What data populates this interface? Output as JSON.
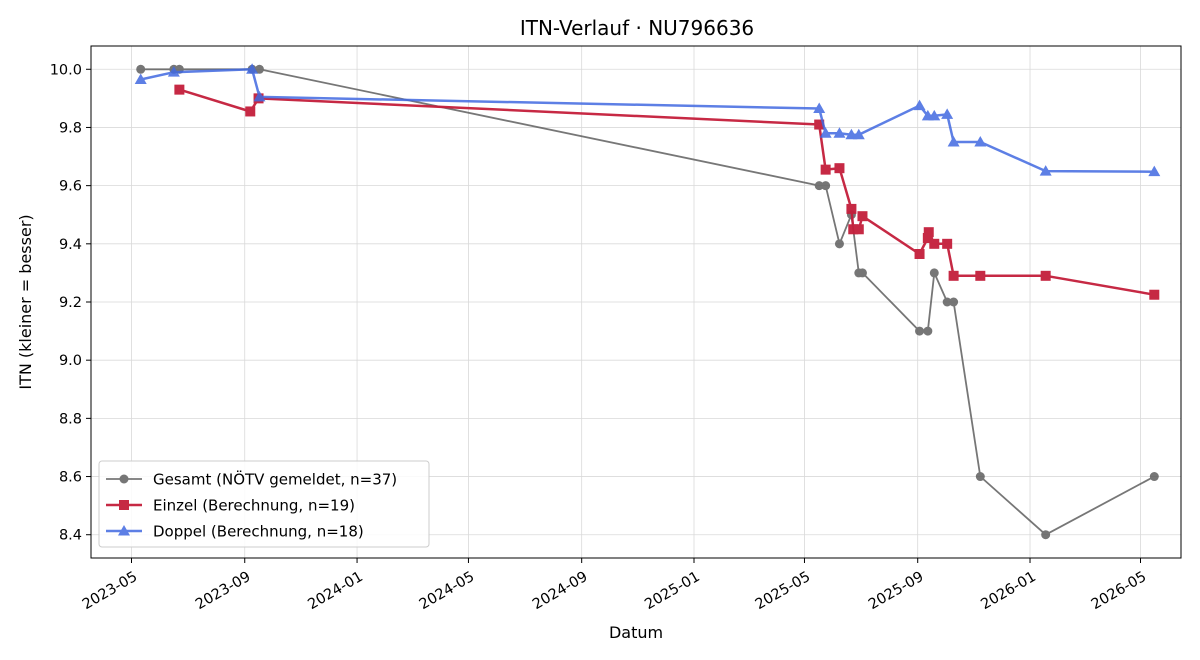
{
  "chart_data": {
    "type": "line",
    "title": "ITN-Verlauf · NU796636",
    "xlabel": "Datum",
    "ylabel": "ITN  (kleiner = besser)",
    "x_ticks": [
      "2023-05",
      "2023-09",
      "2024-01",
      "2024-05",
      "2024-09",
      "2025-01",
      "2025-05",
      "2025-09",
      "2026-01",
      "2026-05"
    ],
    "y_ticks": [
      "8.4",
      "8.6",
      "8.8",
      "9.0",
      "9.2",
      "9.4",
      "9.6",
      "9.8",
      "10.0"
    ],
    "xlim": [
      "2023-03-18",
      "2026-06-14"
    ],
    "ylim": [
      8.32,
      10.08
    ],
    "grid": true,
    "legend_position": "lower-left",
    "series": [
      {
        "name": "Gesamt (NÖTV gemeldet, n=37)",
        "color": "#555555",
        "marker": "circle",
        "points": [
          {
            "x": "2023-05-11",
            "y": 10.0
          },
          {
            "x": "2023-06-16",
            "y": 10.0
          },
          {
            "x": "2023-06-22",
            "y": 10.0
          },
          {
            "x": "2023-09-09",
            "y": 10.0
          },
          {
            "x": "2023-09-17",
            "y": 10.0
          },
          {
            "x": "2025-05-17",
            "y": 9.6
          },
          {
            "x": "2025-05-24",
            "y": 9.6
          },
          {
            "x": "2025-06-08",
            "y": 9.4
          },
          {
            "x": "2025-06-21",
            "y": 9.5
          },
          {
            "x": "2025-06-29",
            "y": 9.3
          },
          {
            "x": "2025-07-03",
            "y": 9.3
          },
          {
            "x": "2025-09-03",
            "y": 9.1
          },
          {
            "x": "2025-09-12",
            "y": 9.1
          },
          {
            "x": "2025-09-19",
            "y": 9.3
          },
          {
            "x": "2025-10-03",
            "y": 9.2
          },
          {
            "x": "2025-10-10",
            "y": 9.2
          },
          {
            "x": "2025-11-08",
            "y": 8.6
          },
          {
            "x": "2026-01-18",
            "y": 8.4
          },
          {
            "x": "2026-05-16",
            "y": 8.6
          }
        ]
      },
      {
        "name": "Einzel (Berechnung, n=19)",
        "color": "#c41e3a",
        "marker": "square",
        "points": [
          {
            "x": "2023-06-22",
            "y": 9.93
          },
          {
            "x": "2023-09-07",
            "y": 9.855
          },
          {
            "x": "2023-09-16",
            "y": 9.9
          },
          {
            "x": "2025-05-17",
            "y": 9.81
          },
          {
            "x": "2025-05-24",
            "y": 9.655
          },
          {
            "x": "2025-06-08",
            "y": 9.66
          },
          {
            "x": "2025-06-21",
            "y": 9.52
          },
          {
            "x": "2025-06-23",
            "y": 9.45
          },
          {
            "x": "2025-06-29",
            "y": 9.45
          },
          {
            "x": "2025-07-03",
            "y": 9.495
          },
          {
            "x": "2025-09-03",
            "y": 9.365
          },
          {
            "x": "2025-09-12",
            "y": 9.42
          },
          {
            "x": "2025-09-13",
            "y": 9.44
          },
          {
            "x": "2025-09-19",
            "y": 9.4
          },
          {
            "x": "2025-10-03",
            "y": 9.4
          },
          {
            "x": "2025-10-10",
            "y": 9.29
          },
          {
            "x": "2025-11-08",
            "y": 9.29
          },
          {
            "x": "2026-01-18",
            "y": 9.29
          },
          {
            "x": "2026-05-16",
            "y": 9.225
          }
        ]
      },
      {
        "name": "Doppel (Berechnung, n=18)",
        "color": "#4169e1",
        "marker": "triangle",
        "points": [
          {
            "x": "2023-05-11",
            "y": 9.965
          },
          {
            "x": "2023-06-16",
            "y": 9.99
          },
          {
            "x": "2023-09-09",
            "y": 10.0
          },
          {
            "x": "2023-09-17",
            "y": 9.905
          },
          {
            "x": "2025-05-17",
            "y": 9.865
          },
          {
            "x": "2025-05-24",
            "y": 9.78
          },
          {
            "x": "2025-06-08",
            "y": 9.78
          },
          {
            "x": "2025-06-21",
            "y": 9.775
          },
          {
            "x": "2025-06-29",
            "y": 9.775
          },
          {
            "x": "2025-09-03",
            "y": 9.875
          },
          {
            "x": "2025-09-12",
            "y": 9.84
          },
          {
            "x": "2025-09-19",
            "y": 9.84
          },
          {
            "x": "2025-10-03",
            "y": 9.845
          },
          {
            "x": "2025-10-10",
            "y": 9.75
          },
          {
            "x": "2025-11-08",
            "y": 9.75
          },
          {
            "x": "2026-01-18",
            "y": 9.65
          },
          {
            "x": "2026-05-16",
            "y": 9.648
          }
        ]
      }
    ]
  }
}
